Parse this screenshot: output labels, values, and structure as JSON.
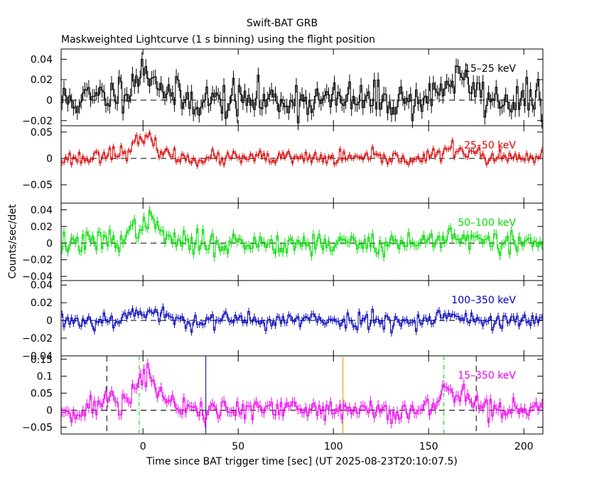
{
  "chart_data": {
    "type": "line",
    "title": "Swift-BAT GRB",
    "subtitle": "Maskweighted Lightcurve (1 s binning) using the flight position",
    "xlabel": "Time since BAT trigger time [sec] (UT 2025-08-23T20:10:07.5)",
    "ylabel": "Counts/sec/det",
    "xlim": [
      -43,
      210
    ],
    "xticks": [
      0,
      50,
      100,
      150,
      200
    ],
    "xtick_labels": [
      "0",
      "50",
      "100",
      "150",
      "200"
    ],
    "panels": [
      {
        "name": "15-25 keV",
        "label": "15–25 keV",
        "color": "#000000",
        "ylim": [
          -0.025,
          0.05
        ],
        "yticks": [
          0.04,
          0.02,
          0,
          -0.02
        ],
        "ytick_labels": [
          "0.04",
          "0.02",
          "0",
          "−0.02"
        ],
        "components": [
          {
            "center": 2,
            "width": 7,
            "amp": 0.027
          },
          {
            "center": -14,
            "width": 8,
            "amp": 0.005
          },
          {
            "center": 162,
            "width": 6,
            "amp": 0.018
          },
          {
            "center": 172,
            "width": 5,
            "amp": 0.01
          }
        ],
        "noise": 0.009,
        "seed": 11
      },
      {
        "name": "25-50 keV",
        "label": "25–50 keV",
        "color": "#dd0000",
        "ylim": [
          -0.085,
          0.062
        ],
        "yticks": [
          0.05,
          0,
          -0.05
        ],
        "ytick_labels": [
          "0.05",
          "0",
          "−0.05"
        ],
        "components": [
          {
            "center": 1,
            "width": 7,
            "amp": 0.035
          },
          {
            "center": -18,
            "width": 4,
            "amp": 0.012
          },
          {
            "center": 162,
            "width": 6,
            "amp": 0.015
          },
          {
            "center": 172,
            "width": 5,
            "amp": 0.008
          }
        ],
        "noise": 0.007,
        "seed": 23
      },
      {
        "name": "50-100 keV",
        "label": "50–100 keV",
        "color": "#00dd00",
        "ylim": [
          -0.045,
          0.048
        ],
        "yticks": [
          0.04,
          0.02,
          0,
          -0.02,
          -0.04
        ],
        "ytick_labels": [
          "0.04",
          "0.02",
          "0",
          "−0.02",
          "−0.04"
        ],
        "components": [
          {
            "center": 2,
            "width": 7,
            "amp": 0.025
          },
          {
            "center": -18,
            "width": 4,
            "amp": 0.004
          },
          {
            "center": 162,
            "width": 7,
            "amp": 0.01
          }
        ],
        "noise": 0.007,
        "seed": 37
      },
      {
        "name": "100-350 keV",
        "label": "100–350 keV",
        "color": "#0000bb",
        "ylim": [
          -0.04,
          0.045
        ],
        "yticks": [
          0.04,
          0.02,
          0,
          -0.02,
          -0.04
        ],
        "ytick_labels": [
          "0.04",
          "0.02",
          "0",
          "−0.02",
          "−0.04"
        ],
        "components": [
          {
            "center": 0,
            "width": 8,
            "amp": 0.01
          },
          {
            "center": 160,
            "width": 6,
            "amp": 0.006
          }
        ],
        "noise": 0.005,
        "seed": 53
      },
      {
        "name": "15-350 keV",
        "label": "15–350 keV",
        "color": "#ee00ee",
        "ylim": [
          -0.07,
          0.16
        ],
        "yticks": [
          0.15,
          0.1,
          0.05,
          0,
          -0.05
        ],
        "ytick_labels": [
          "0.15",
          "0.1",
          "0.05",
          "0",
          "−0.05"
        ],
        "components": [
          {
            "center": 2,
            "width": 7,
            "amp": 0.095
          },
          {
            "center": -18,
            "width": 4,
            "amp": 0.035
          },
          {
            "center": 161,
            "width": 5,
            "amp": 0.055
          },
          {
            "center": 171,
            "width": 5,
            "amp": 0.035
          }
        ],
        "noise": 0.018,
        "seed": 71
      }
    ],
    "reference_lines": [
      {
        "name": "t-start-bracket",
        "x": -19,
        "style": "dashed",
        "color": "#000000"
      },
      {
        "name": "t-start-green",
        "x": -2,
        "style": "dashdot",
        "color": "#00cc00"
      },
      {
        "name": "t-blue",
        "x": 33,
        "style": "solid",
        "color": "#000088"
      },
      {
        "name": "t-orange",
        "x": 105,
        "style": "solid",
        "color": "#ff8800"
      },
      {
        "name": "t-end-green",
        "x": 158,
        "style": "dashdot",
        "color": "#00cc00"
      },
      {
        "name": "t-end-bracket",
        "x": 175,
        "style": "dashed",
        "color": "#000000"
      }
    ]
  }
}
